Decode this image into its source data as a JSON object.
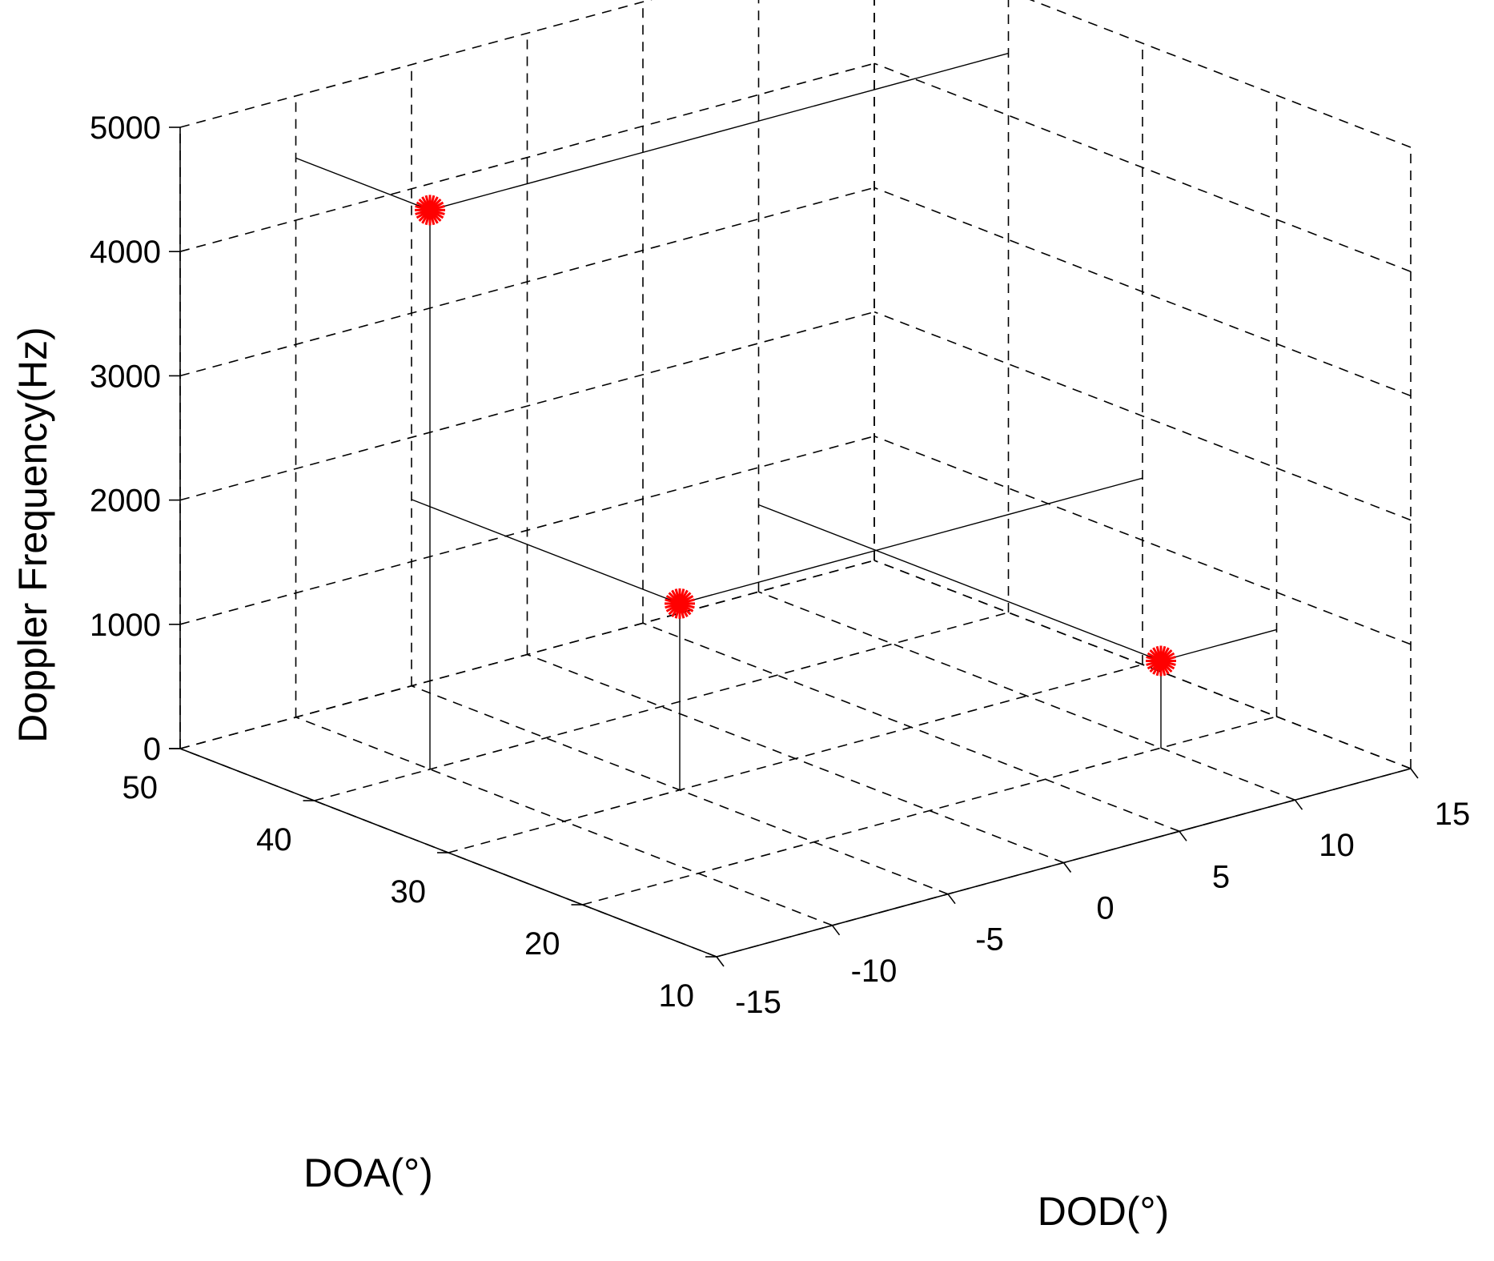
{
  "chart_data": {
    "type": "scatter",
    "projection": "3d",
    "xlabel": "DOD(°)",
    "ylabel": "DOA(°)",
    "zlabel": "Doppler Frequency(Hz)",
    "xlim": [
      -15,
      15
    ],
    "ylim": [
      10,
      50
    ],
    "zlim": [
      0,
      5000
    ],
    "xticks": [
      -15,
      -10,
      -5,
      0,
      5,
      10,
      15
    ],
    "yticks": [
      10,
      20,
      30,
      40,
      50
    ],
    "zticks": [
      0,
      1000,
      2000,
      3000,
      4000,
      5000
    ],
    "xtick_labels": [
      "-15",
      "-10",
      "-5",
      "0",
      "5",
      "10",
      "15"
    ],
    "ytick_labels": [
      "10",
      "20",
      "30",
      "40",
      "50"
    ],
    "ztick_labels": [
      "0",
      "1000",
      "2000",
      "3000",
      "4000",
      "5000"
    ],
    "grid": true,
    "marker": "red-asterisk",
    "marker_color": "#ff0000",
    "points": [
      {
        "x": -10,
        "y": 40,
        "z": 4500
      },
      {
        "x": -5,
        "y": 30,
        "z": 1500
      },
      {
        "x": 10,
        "y": 20,
        "z": 700
      }
    ]
  }
}
